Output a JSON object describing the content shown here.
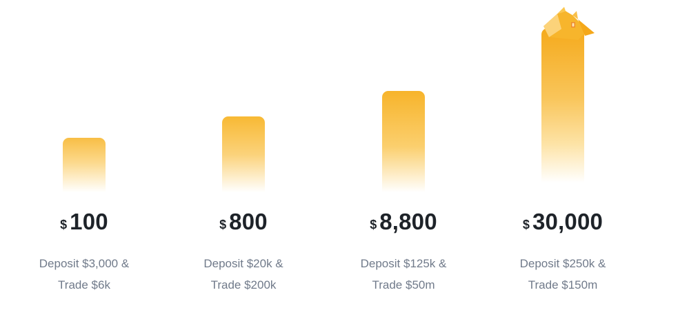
{
  "accent_color": "#f7b42b",
  "text_color": "#1e2329",
  "subtext_color": "#707a8a",
  "tiers": [
    {
      "currency": "$",
      "amount": "100",
      "line1": "Deposit $3,000 &",
      "line2": "Trade $6k"
    },
    {
      "currency": "$",
      "amount": "800",
      "line1": "Deposit $20k &",
      "line2": "Trade $200k"
    },
    {
      "currency": "$",
      "amount": "8,800",
      "line1": "Deposit $125k &",
      "line2": "Trade $50m"
    },
    {
      "currency": "$",
      "amount": "30,000",
      "line1": "Deposit $250k &",
      "line2": "Trade $150m",
      "icon": "crown-icon"
    }
  ]
}
